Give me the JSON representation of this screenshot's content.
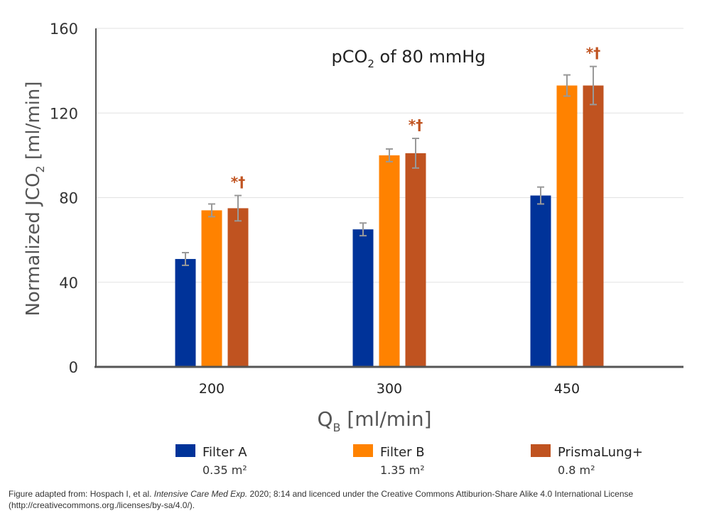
{
  "chart_data": {
    "type": "bar",
    "title_parts": [
      "pCO",
      "2",
      " of 80 mmHg"
    ],
    "ylabel_parts": [
      "Normalized JCO",
      "2",
      " [ml/min]"
    ],
    "xlabel_parts": [
      "Q",
      "B",
      " [ml/min]"
    ],
    "categories": [
      "200",
      "300",
      "450"
    ],
    "ylim": [
      0,
      160
    ],
    "yticks": [
      0,
      40,
      80,
      120,
      160
    ],
    "grid": true,
    "legend_position": "bottom",
    "series": [
      {
        "name": "Filter A",
        "area": "0.35 m²",
        "color": "#003399",
        "values": [
          51,
          65,
          81
        ],
        "errors": [
          3,
          3,
          4
        ],
        "annotations": [
          "",
          "",
          ""
        ]
      },
      {
        "name": "Filter B",
        "area": "1.35 m²",
        "color": "#FF8200",
        "values": [
          74,
          100,
          133
        ],
        "errors": [
          3,
          3,
          5
        ],
        "annotations": [
          "",
          "",
          ""
        ]
      },
      {
        "name": "PrismaLung+",
        "area": "0.8 m²",
        "color": "#C05320",
        "values": [
          75,
          101,
          133
        ],
        "errors": [
          6,
          7,
          9
        ],
        "annotations": [
          "*†",
          "*†",
          "*†"
        ]
      }
    ],
    "annotation_color": "#C05320",
    "error_bar_color": "#999999"
  },
  "caption": {
    "prefix": "Figure adapted from: Hospach I, et al. ",
    "journal": "Intensive Care Med Exp.",
    "suffix": " 2020; 8:14 and licenced under the Creative Commons Attiburion-Share Alike 4.0 International License (http://creativecommons.org./licenses/by-sa/4.0/)."
  }
}
